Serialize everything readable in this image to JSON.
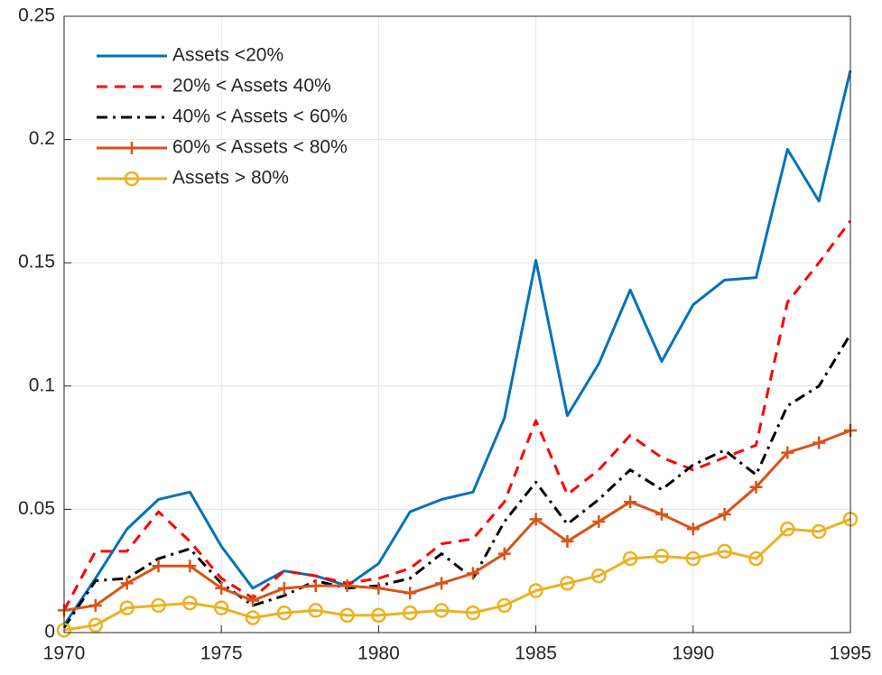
{
  "chart_data": {
    "type": "line",
    "x": [
      1970,
      1971,
      1972,
      1973,
      1974,
      1975,
      1976,
      1977,
      1978,
      1979,
      1980,
      1981,
      1982,
      1983,
      1984,
      1985,
      1986,
      1987,
      1988,
      1989,
      1990,
      1991,
      1992,
      1993,
      1994,
      1995
    ],
    "series": [
      {
        "name": "Assets <20%",
        "color": "#0072bd",
        "style": "solid",
        "marker": "none",
        "values": [
          0.003,
          0.022,
          0.042,
          0.054,
          0.057,
          0.035,
          0.018,
          0.025,
          0.023,
          0.019,
          0.028,
          0.049,
          0.054,
          0.057,
          0.087,
          0.151,
          0.088,
          0.109,
          0.139,
          0.11,
          0.133,
          0.143,
          0.144,
          0.196,
          0.175,
          0.228
        ]
      },
      {
        "name": "20% < Assets 40%",
        "color": "#ff0000",
        "style": "dashed",
        "marker": "none",
        "values": [
          0.009,
          0.033,
          0.033,
          0.049,
          0.037,
          0.022,
          0.014,
          0.025,
          0.023,
          0.02,
          0.022,
          0.026,
          0.036,
          0.038,
          0.053,
          0.086,
          0.056,
          0.066,
          0.08,
          0.071,
          0.066,
          0.071,
          0.076,
          0.134,
          0.15,
          0.167
        ]
      },
      {
        "name": "40% < Assets < 60%",
        "color": "#000000",
        "style": "dashdot",
        "marker": "none",
        "values": [
          0.002,
          0.021,
          0.022,
          0.03,
          0.034,
          0.02,
          0.011,
          0.015,
          0.021,
          0.018,
          0.019,
          0.022,
          0.032,
          0.022,
          0.045,
          0.061,
          0.044,
          0.054,
          0.066,
          0.058,
          0.068,
          0.074,
          0.064,
          0.092,
          0.1,
          0.121
        ]
      },
      {
        "name": "60% < Assets < 80%",
        "color": "#d95319",
        "style": "solid",
        "marker": "plus",
        "values": [
          0.009,
          0.011,
          0.02,
          0.027,
          0.027,
          0.018,
          0.013,
          0.018,
          0.019,
          0.019,
          0.018,
          0.016,
          0.02,
          0.024,
          0.032,
          0.046,
          0.037,
          0.045,
          0.053,
          0.048,
          0.042,
          0.048,
          0.059,
          0.073,
          0.077,
          0.082
        ]
      },
      {
        "name": "Assets > 80%",
        "color": "#edb120",
        "style": "solid",
        "marker": "circle",
        "values": [
          0.001,
          0.003,
          0.01,
          0.011,
          0.012,
          0.01,
          0.006,
          0.008,
          0.009,
          0.007,
          0.007,
          0.008,
          0.009,
          0.008,
          0.011,
          0.017,
          0.02,
          0.023,
          0.03,
          0.031,
          0.03,
          0.033,
          0.03,
          0.042,
          0.041,
          0.046
        ]
      }
    ],
    "xlim": [
      1970,
      1995
    ],
    "xticks": [
      1970,
      1975,
      1980,
      1985,
      1990,
      1995
    ],
    "ylim": [
      0,
      0.25
    ],
    "yticks": [
      0,
      0.05,
      0.1,
      0.15,
      0.2,
      0.25
    ],
    "grid": true,
    "legend": "top-left"
  }
}
